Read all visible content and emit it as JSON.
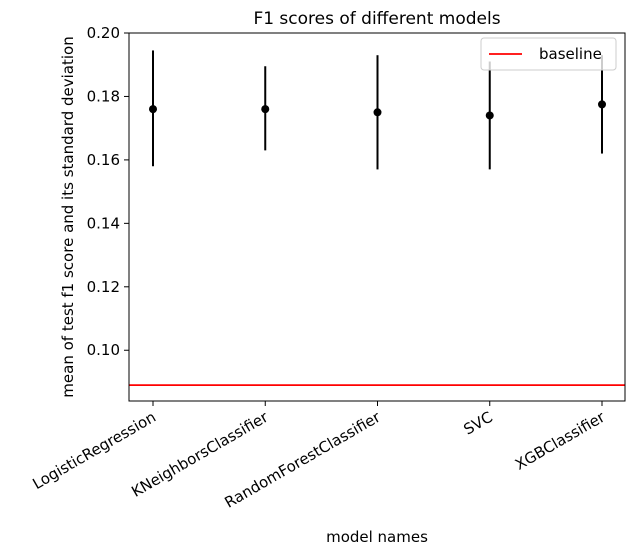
{
  "chart_data": {
    "type": "scatter",
    "title": "F1 scores of different models",
    "xlabel": "model names",
    "ylabel": "mean of test f1 score and its standard deviation",
    "categories": [
      "LogisticRegression",
      "KNeighborsClassifier",
      "RandomForestClassifier",
      "SVC",
      "XGBClassifier"
    ],
    "series": [
      {
        "values": [
          0.176,
          0.176,
          0.175,
          0.174,
          0.1775
        ],
        "error_low": [
          0.158,
          0.163,
          0.157,
          0.157,
          0.162
        ],
        "error_high": [
          0.1945,
          0.1895,
          0.193,
          0.191,
          0.193
        ]
      }
    ],
    "baseline": {
      "name": "baseline",
      "value": 0.089,
      "color": "#ff0000"
    },
    "ylim": [
      0.084,
      0.2
    ],
    "yticks": [
      0.1,
      0.12,
      0.14,
      0.16,
      0.18,
      0.2
    ],
    "ytick_labels": [
      "0.10",
      "0.12",
      "0.14",
      "0.16",
      "0.18",
      "0.20"
    ],
    "grid": false,
    "legend_position": "top-right",
    "marker_color": "#000000"
  }
}
